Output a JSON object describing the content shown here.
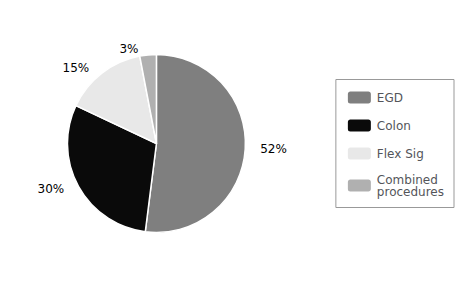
{
  "chart_data": {
    "type": "pie",
    "categories": [
      "EGD",
      "Colon",
      "Flex Sig",
      "Combined\nprocedures"
    ],
    "values": [
      52,
      30,
      15,
      3
    ],
    "value_labels": [
      "52%",
      "30%",
      "15%",
      "3%"
    ],
    "colors": [
      "#7f7f7f",
      "#0a0a0a",
      "#e8e8e8",
      "#b0b0b0"
    ],
    "data_labels": true,
    "legend": "right"
  }
}
